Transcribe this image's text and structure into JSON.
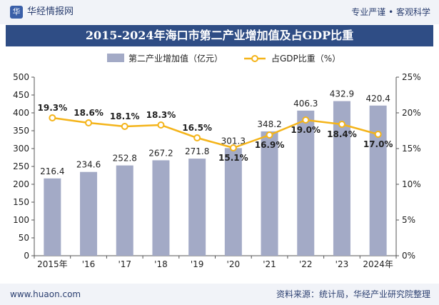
{
  "header": {
    "brand": "华经情报网",
    "tagline": "专业严谨 • 客观科学",
    "logo_glyph": "华"
  },
  "footer": {
    "website": "www.huaon.com",
    "source": "资料来源：统计局，华经产业研究院整理"
  },
  "colors": {
    "bar": "#a3aac6",
    "line": "#f4b41a",
    "title_bg": "#2f4d85"
  },
  "chart_data": {
    "type": "bar",
    "title": "2015-2024年海口市第二产业增加值及占GDP比重",
    "categories": [
      "2015年",
      "'16",
      "'17",
      "'18",
      "'19",
      "'20",
      "'21",
      "'22",
      "'23",
      "2024年"
    ],
    "series": [
      {
        "name": "第二产业增加值（亿元）",
        "type": "bar",
        "axis": "left",
        "values": [
          216.4,
          234.6,
          252.8,
          267.2,
          271.8,
          301.3,
          348.2,
          406.3,
          432.9,
          420.4
        ],
        "labels": [
          "216.4",
          "234.6",
          "252.8",
          "267.2",
          "271.8",
          "301.3",
          "348.2",
          "406.3",
          "432.9",
          "420.4"
        ]
      },
      {
        "name": "占GDP比重（%）",
        "type": "line",
        "axis": "right",
        "values": [
          19.3,
          18.6,
          18.1,
          18.3,
          16.5,
          15.1,
          16.9,
          19.0,
          18.4,
          17.0
        ],
        "labels": [
          "19.3%",
          "18.6%",
          "18.1%",
          "18.3%",
          "16.5%",
          "15.1%",
          "16.9%",
          "19.0%",
          "18.4%",
          "17.0%"
        ]
      }
    ],
    "y_left": {
      "range": [
        0,
        500
      ],
      "ticks": [
        "0",
        "50",
        "100",
        "150",
        "200",
        "250",
        "300",
        "350",
        "400",
        "450",
        "500"
      ]
    },
    "y_right": {
      "range": [
        0,
        25
      ],
      "ticks": [
        "0%",
        "5%",
        "10%",
        "15%",
        "20%",
        "25%"
      ]
    },
    "legend_position": "top-center",
    "grid": false
  }
}
